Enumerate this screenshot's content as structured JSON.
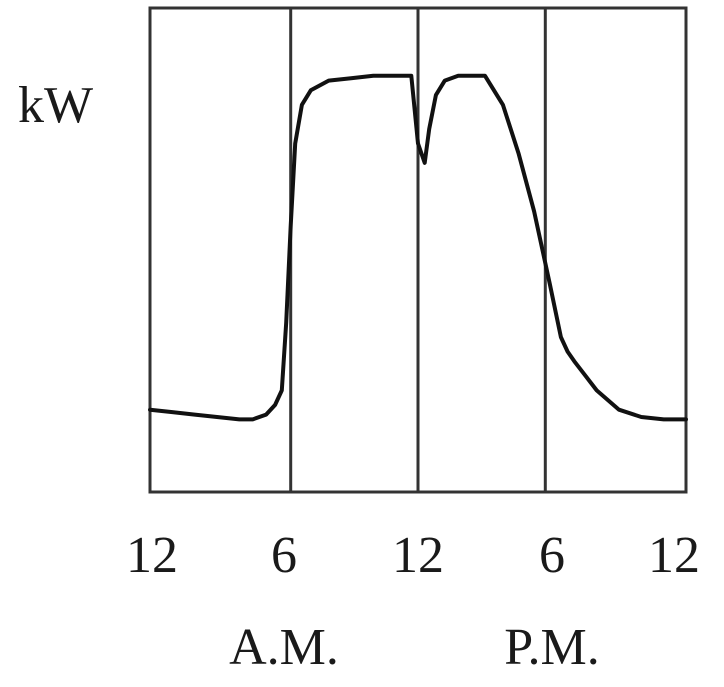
{
  "chart_data": {
    "type": "line",
    "title": "",
    "xlabel": "",
    "ylabel": "kW",
    "x_tick_labels": [
      "12",
      "6",
      "12",
      "6",
      "12"
    ],
    "x_tick_values": [
      0,
      6,
      12,
      18,
      24
    ],
    "period_labels": [
      "A.M.",
      "P.M."
    ],
    "xlim": [
      0,
      24
    ],
    "ylim": [
      0,
      10
    ],
    "grid": "vertical",
    "legend": "none",
    "series": [
      {
        "x": [
          0,
          1,
          2,
          3,
          4,
          4.6,
          5.2,
          5.6,
          5.9,
          6.1,
          6.3,
          6.5,
          6.8,
          7.2,
          8,
          9,
          10,
          11,
          11.7,
          12.0,
          12.3,
          12.5,
          12.8,
          13.2,
          13.8,
          14.4,
          15,
          15.8,
          16.5,
          17.2,
          17.9,
          18.4,
          18.7,
          19,
          19.5,
          20,
          21,
          22,
          23,
          24
        ],
        "values": [
          1.7,
          1.65,
          1.6,
          1.55,
          1.5,
          1.5,
          1.6,
          1.8,
          2.1,
          3.5,
          5.5,
          7.2,
          8.0,
          8.3,
          8.5,
          8.55,
          8.6,
          8.6,
          8.6,
          7.2,
          6.8,
          7.5,
          8.2,
          8.5,
          8.6,
          8.6,
          8.6,
          8.0,
          7.0,
          5.8,
          4.3,
          3.2,
          2.9,
          2.7,
          2.4,
          2.1,
          1.7,
          1.55,
          1.5,
          1.5
        ],
        "color": "#111111"
      }
    ],
    "colors": {
      "frame": "#333333",
      "gridline": "#333333",
      "line": "#111111",
      "background": "#ffffff"
    }
  }
}
